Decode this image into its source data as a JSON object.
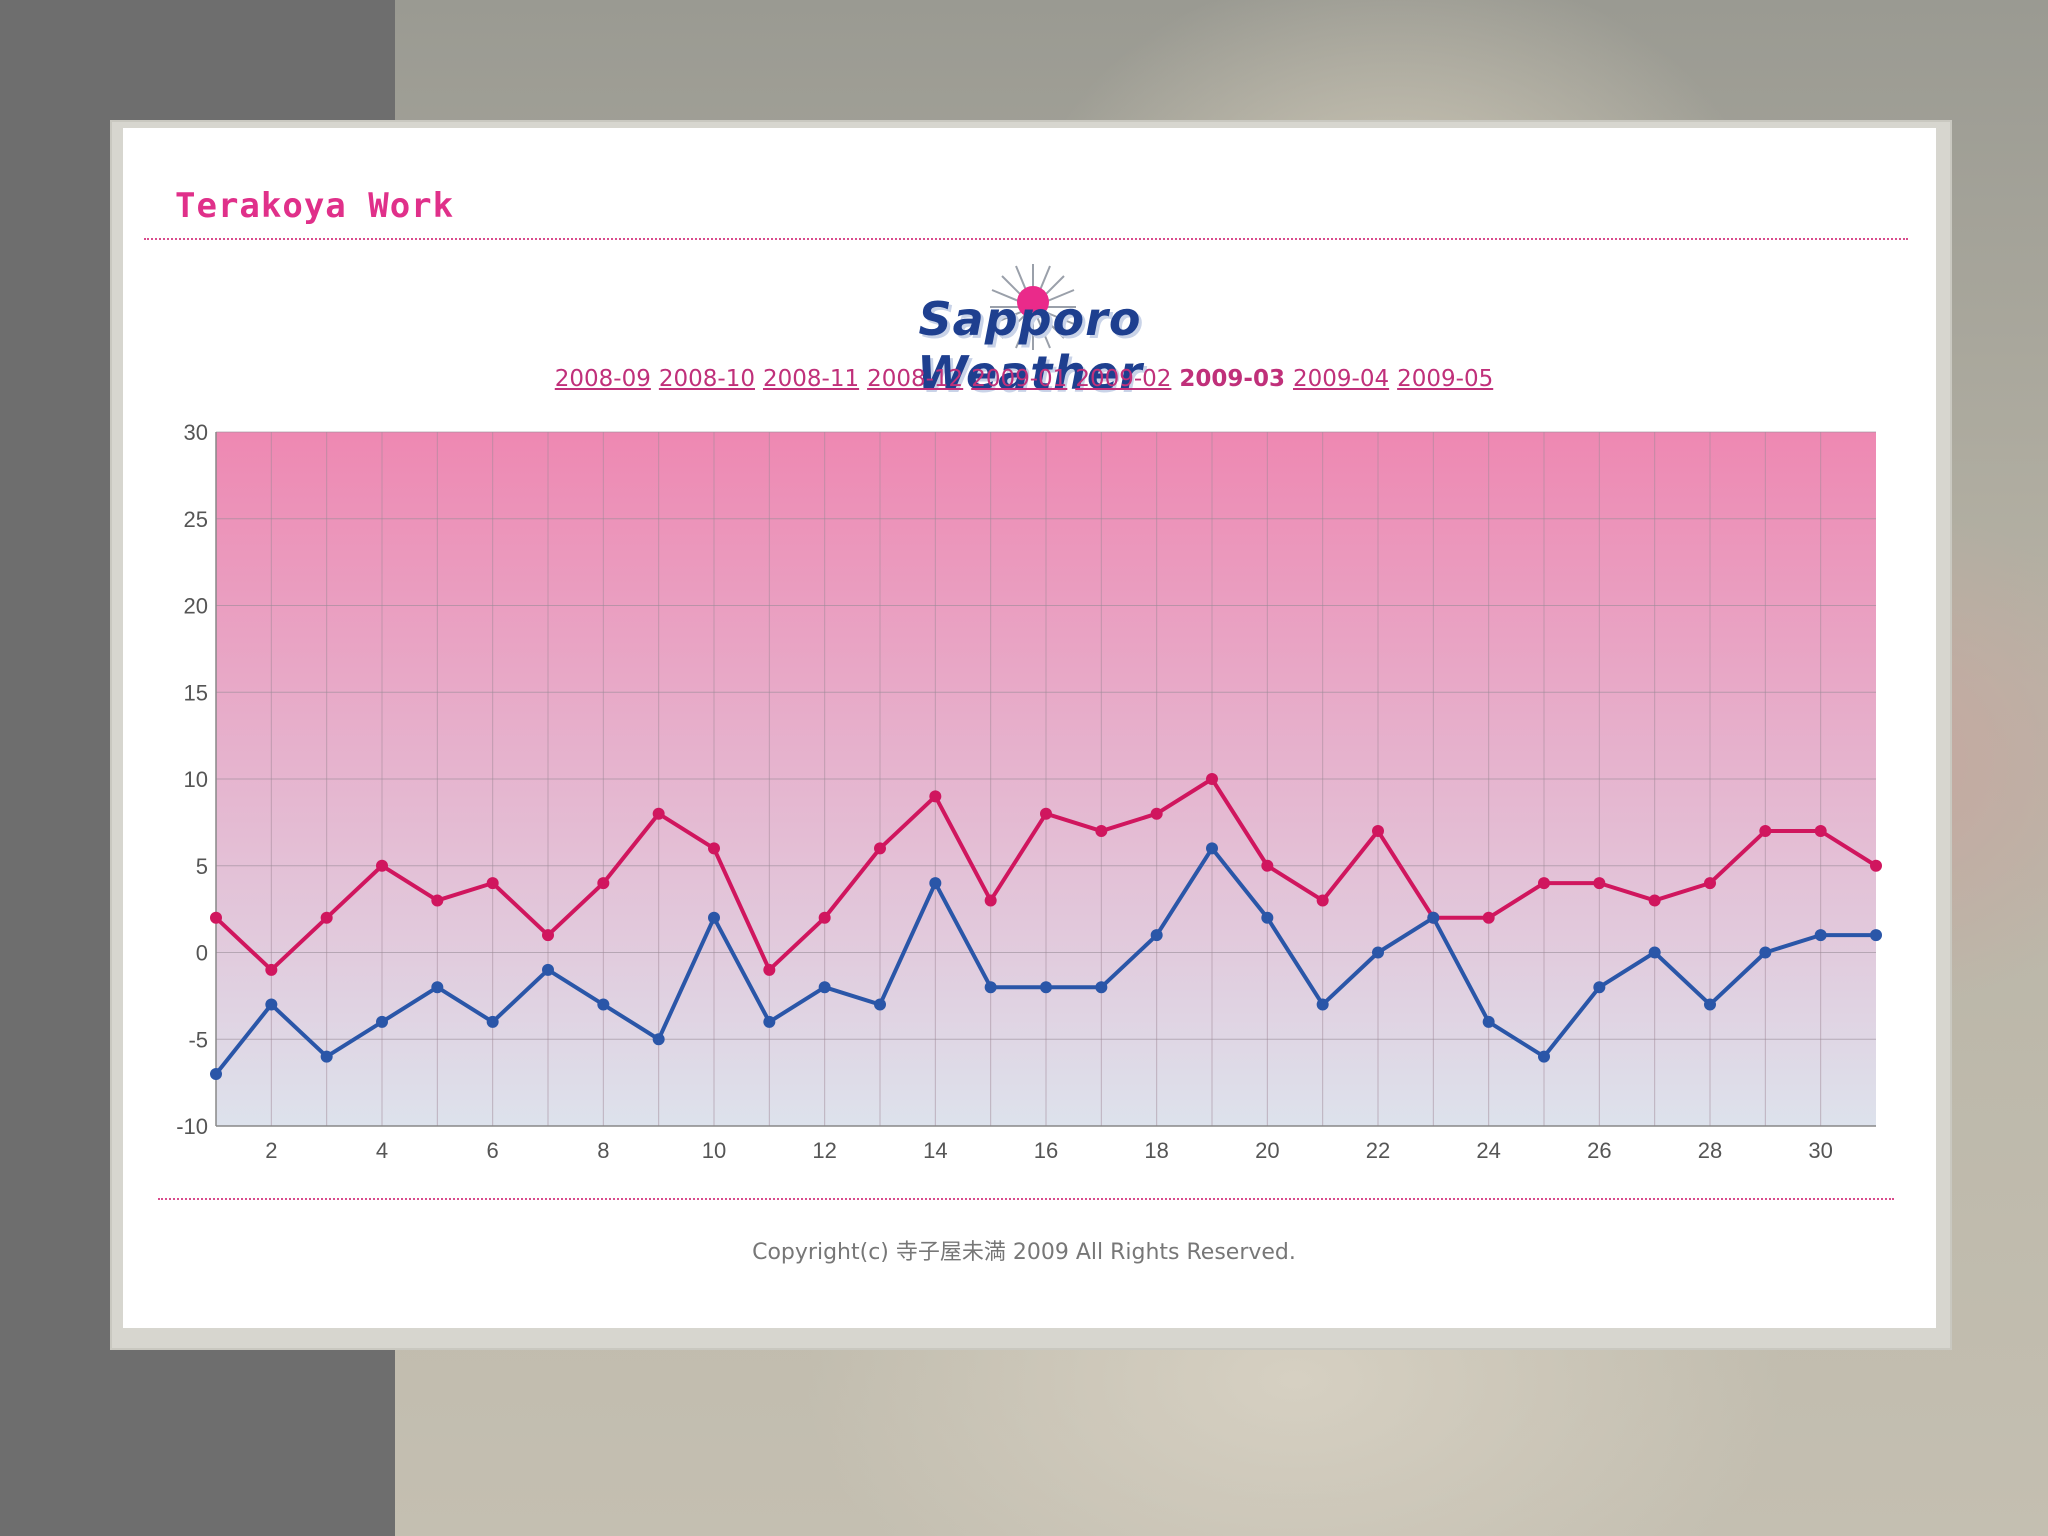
{
  "site": {
    "title": "Terakoya Work"
  },
  "logo": {
    "text": "Sapporo Weather"
  },
  "months": [
    {
      "label": "2008-09",
      "current": false
    },
    {
      "label": "2008-10",
      "current": false
    },
    {
      "label": "2008-11",
      "current": false
    },
    {
      "label": "2008-12",
      "current": false
    },
    {
      "label": "2009-01",
      "current": false
    },
    {
      "label": "2009-02",
      "current": false
    },
    {
      "label": "2009-03",
      "current": true
    },
    {
      "label": "2009-04",
      "current": false
    },
    {
      "label": "2009-05",
      "current": false
    }
  ],
  "footer": {
    "copyright": "Copyright(c) 寺子屋未満 2009 All Rights Reserved."
  },
  "colors": {
    "title": "#e0308a",
    "link": "#c0307a",
    "high_series": "#d0165e",
    "low_series": "#2a56a8",
    "plot_top": "#ee88b2",
    "plot_bottom": "#dde2ec"
  },
  "chart_data": {
    "type": "line",
    "title": "",
    "xlabel": "",
    "ylabel": "",
    "x": [
      1,
      2,
      3,
      4,
      5,
      6,
      7,
      8,
      9,
      10,
      11,
      12,
      13,
      14,
      15,
      16,
      17,
      18,
      19,
      20,
      21,
      22,
      23,
      24,
      25,
      26,
      27,
      28,
      29,
      30,
      31
    ],
    "xlim": [
      1,
      31
    ],
    "ylim": [
      -10,
      30
    ],
    "x_ticks": [
      2,
      4,
      6,
      8,
      10,
      12,
      14,
      16,
      18,
      20,
      22,
      24,
      26,
      28,
      30
    ],
    "y_ticks": [
      -10,
      -5,
      0,
      5,
      10,
      15,
      20,
      25,
      30
    ],
    "grid": true,
    "legend": "none",
    "series": [
      {
        "values": [
          2,
          -1,
          2,
          5,
          3,
          4,
          1,
          4,
          8,
          6,
          -1,
          2,
          6,
          9,
          3,
          8,
          7,
          8,
          10,
          5,
          3,
          7,
          2,
          2,
          4,
          4,
          3,
          4,
          7,
          7,
          5
        ]
      },
      {
        "values": [
          -7,
          -3,
          -6,
          -4,
          -2,
          -4,
          -1,
          -3,
          -5,
          2,
          -4,
          -2,
          -3,
          4,
          -2,
          -2,
          -2,
          1,
          6,
          2,
          -3,
          0,
          2,
          -4,
          -6,
          -2,
          0,
          -3,
          0,
          1,
          1
        ]
      }
    ]
  }
}
